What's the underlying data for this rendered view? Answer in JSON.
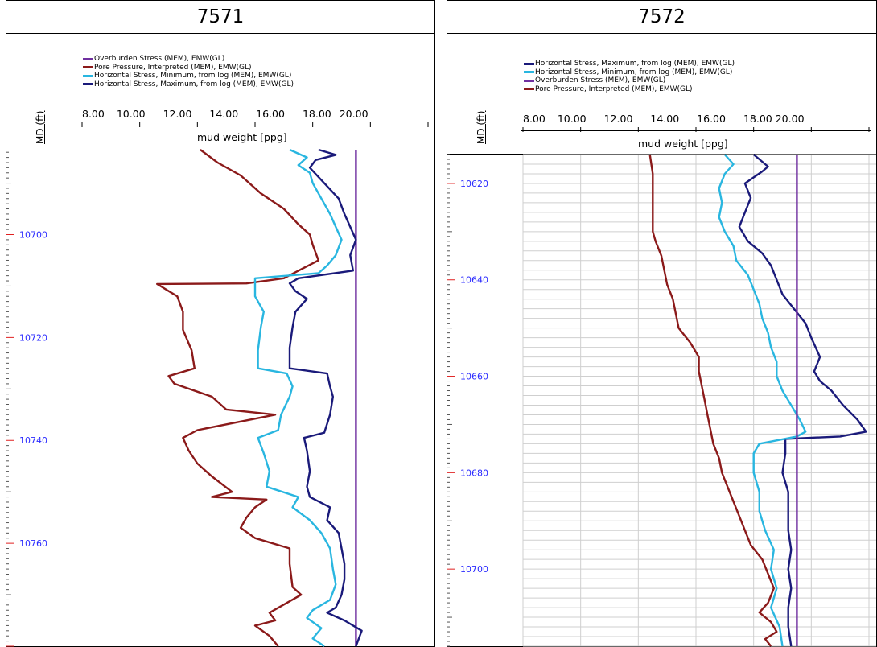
{
  "panels": [
    {
      "title": "7571",
      "depth_axis_label": "MD (ft)",
      "legend": [
        {
          "label": "Overburden Stress (MEM), EMW(GL)",
          "color": "#7030a0"
        },
        {
          "label": "Pore Pressure, Interpreted (MEM), EMW(GL)",
          "color": "#8b1a1a"
        },
        {
          "label": "Horizontal Stress, Minimum, from log (MEM), EMW(GL)",
          "color": "#29b6e0"
        },
        {
          "label": "Horizontal Stress, Maximum, from log (MEM), EMW(GL)",
          "color": "#1a1a7a"
        }
      ],
      "scale_ticks": [
        "8.00",
        "10.00",
        "12.00",
        "14.00",
        "16.00",
        "18.00",
        "20.00"
      ],
      "axis_label": "mud weight [ppg]"
    },
    {
      "title": "7572",
      "depth_axis_label": "MD (ft)",
      "legend": [
        {
          "label": "Horizontal Stress, Maximum, from log (MEM), EMW(GL)",
          "color": "#1a1a7a"
        },
        {
          "label": "Horizontal Stress, Minimum, from log (MEM), EMW(GL)",
          "color": "#29b6e0"
        },
        {
          "label": "Overburden Stress (MEM), EMW(GL)",
          "color": "#7030a0"
        },
        {
          "label": "Pore Pressure, Interpreted (MEM), EMW(GL)",
          "color": "#8b1a1a"
        }
      ],
      "scale_ticks": [
        "8.00",
        "10.00",
        "12.00",
        "14.00",
        "16.00",
        "18.00",
        "20.00"
      ],
      "axis_label": "mud weight [ppg]"
    }
  ],
  "chart_data": [
    {
      "type": "line",
      "title": "7571",
      "xlabel": "mud weight [ppg]",
      "ylabel": "MD (ft)",
      "xlim": [
        8,
        20
      ],
      "ylim": [
        10683.5,
        10780
      ],
      "y_tick_labels": [
        10700,
        10720,
        10740,
        10760
      ],
      "grid": false,
      "series": [
        {
          "name": "Overburden Stress (MEM), EMW(GL)",
          "color": "#7030a0",
          "points": [
            [
              17.5,
              10683.5
            ],
            [
              17.5,
              10780
            ]
          ]
        },
        {
          "name": "Pore Pressure, Interpreted (MEM), EMW(GL)",
          "color": "#8b1a1a",
          "points": [
            [
              12.1,
              10683.5
            ],
            [
              12.7,
              10686
            ],
            [
              13.5,
              10688.5
            ],
            [
              14.2,
              10692
            ],
            [
              15.0,
              10695
            ],
            [
              15.5,
              10698
            ],
            [
              15.9,
              10700
            ],
            [
              16.0,
              10702
            ],
            [
              16.2,
              10705
            ],
            [
              15.0,
              10708.5
            ],
            [
              13.7,
              10709.5
            ],
            [
              10.6,
              10709.6
            ],
            [
              11.3,
              10712
            ],
            [
              11.5,
              10715
            ],
            [
              11.5,
              10718.5
            ],
            [
              11.8,
              10722.5
            ],
            [
              11.9,
              10726
            ],
            [
              11.0,
              10727.5
            ],
            [
              11.2,
              10729
            ],
            [
              12.5,
              10731.5
            ],
            [
              13.0,
              10734
            ],
            [
              14.7,
              10735
            ],
            [
              12.0,
              10738
            ],
            [
              11.5,
              10739.5
            ],
            [
              11.7,
              10742
            ],
            [
              12.0,
              10744.5
            ],
            [
              12.5,
              10747
            ],
            [
              13.2,
              10750
            ],
            [
              12.5,
              10751
            ],
            [
              14.4,
              10751.5
            ],
            [
              14.0,
              10753
            ],
            [
              13.7,
              10755
            ],
            [
              13.5,
              10757
            ],
            [
              14.0,
              10759
            ],
            [
              15.2,
              10761
            ],
            [
              15.2,
              10764
            ],
            [
              15.3,
              10768.5
            ],
            [
              15.6,
              10770
            ],
            [
              14.5,
              10773.5
            ],
            [
              14.7,
              10775
            ],
            [
              14.0,
              10776
            ],
            [
              14.5,
              10778
            ],
            [
              14.8,
              10780
            ]
          ]
        },
        {
          "name": "Horizontal Stress, Minimum, from log (MEM), EMW(GL)",
          "color": "#29b6e0",
          "points": [
            [
              15.2,
              10683.5
            ],
            [
              15.8,
              10685
            ],
            [
              15.5,
              10686.5
            ],
            [
              15.9,
              10688
            ],
            [
              16.0,
              10690
            ],
            [
              16.3,
              10693
            ],
            [
              16.6,
              10696
            ],
            [
              16.8,
              10698.5
            ],
            [
              17.0,
              10701
            ],
            [
              16.8,
              10704
            ],
            [
              16.5,
              10706
            ],
            [
              16.2,
              10707.5
            ],
            [
              14.0,
              10708.5
            ],
            [
              14.0,
              10712
            ],
            [
              14.3,
              10715
            ],
            [
              14.2,
              10718
            ],
            [
              14.1,
              10722.5
            ],
            [
              14.1,
              10726
            ],
            [
              15.1,
              10727
            ],
            [
              15.3,
              10729.5
            ],
            [
              15.2,
              10731.5
            ],
            [
              14.9,
              10735
            ],
            [
              14.8,
              10738
            ],
            [
              14.1,
              10739.5
            ],
            [
              14.3,
              10742.5
            ],
            [
              14.5,
              10746
            ],
            [
              14.4,
              10749
            ],
            [
              15.5,
              10751
            ],
            [
              15.3,
              10753
            ],
            [
              15.9,
              10755.5
            ],
            [
              16.3,
              10758
            ],
            [
              16.6,
              10761
            ],
            [
              16.7,
              10765
            ],
            [
              16.8,
              10768
            ],
            [
              16.6,
              10771
            ],
            [
              16.0,
              10773
            ],
            [
              15.8,
              10774.5
            ],
            [
              16.3,
              10776.5
            ],
            [
              16.0,
              10778.5
            ],
            [
              16.4,
              10780
            ]
          ]
        },
        {
          "name": "Horizontal Stress, Maximum, from log (MEM), EMW(GL)",
          "color": "#1a1a7a",
          "points": [
            [
              16.2,
              10683.5
            ],
            [
              16.8,
              10684.5
            ],
            [
              16.1,
              10685.5
            ],
            [
              15.9,
              10687
            ],
            [
              16.4,
              10690
            ],
            [
              16.9,
              10693
            ],
            [
              17.1,
              10696
            ],
            [
              17.3,
              10698.5
            ],
            [
              17.5,
              10701
            ],
            [
              17.3,
              10704
            ],
            [
              17.4,
              10707
            ],
            [
              15.5,
              10708.5
            ],
            [
              15.2,
              10709.5
            ],
            [
              15.4,
              10711
            ],
            [
              15.8,
              10712.5
            ],
            [
              15.4,
              10715
            ],
            [
              15.3,
              10718
            ],
            [
              15.2,
              10722
            ],
            [
              15.2,
              10726
            ],
            [
              16.5,
              10727
            ],
            [
              16.6,
              10729.5
            ],
            [
              16.7,
              10731.5
            ],
            [
              16.6,
              10735
            ],
            [
              16.4,
              10738.5
            ],
            [
              15.7,
              10739.5
            ],
            [
              15.8,
              10742
            ],
            [
              15.9,
              10746
            ],
            [
              15.8,
              10749
            ],
            [
              15.9,
              10751
            ],
            [
              16.6,
              10753
            ],
            [
              16.5,
              10755.5
            ],
            [
              16.9,
              10758
            ],
            [
              17.0,
              10761
            ],
            [
              17.1,
              10764
            ],
            [
              17.1,
              10767
            ],
            [
              17.0,
              10770
            ],
            [
              16.8,
              10772.5
            ],
            [
              16.5,
              10773.5
            ],
            [
              17.1,
              10775
            ],
            [
              17.7,
              10777
            ],
            [
              17.5,
              10780
            ]
          ]
        }
      ]
    },
    {
      "type": "line",
      "title": "7572",
      "xlabel": "mud weight [ppg]",
      "ylabel": "MD (ft)",
      "xlim": [
        8,
        20
      ],
      "ylim": [
        10614,
        10716
      ],
      "y_tick_labels": [
        10620,
        10640,
        10660,
        10680,
        10700
      ],
      "grid": true,
      "series": [
        {
          "name": "Horizontal Stress, Maximum, from log (MEM), EMW(GL)",
          "color": "#1a1a7a",
          "points": [
            [
              16.0,
              10614
            ],
            [
              16.5,
              10616.5
            ],
            [
              16.3,
              10617.5
            ],
            [
              15.7,
              10620
            ],
            [
              15.9,
              10623
            ],
            [
              15.7,
              10626
            ],
            [
              15.5,
              10629
            ],
            [
              15.8,
              10632
            ],
            [
              16.3,
              10634.5
            ],
            [
              16.6,
              10637
            ],
            [
              16.8,
              10640
            ],
            [
              17.0,
              10643
            ],
            [
              17.4,
              10646
            ],
            [
              17.8,
              10649
            ],
            [
              18.0,
              10652
            ],
            [
              18.3,
              10656
            ],
            [
              18.1,
              10659
            ],
            [
              18.3,
              10661
            ],
            [
              18.7,
              10663
            ],
            [
              19.1,
              10666
            ],
            [
              19.6,
              10669
            ],
            [
              19.9,
              10671.5
            ],
            [
              19.0,
              10672.5
            ],
            [
              17.1,
              10673
            ],
            [
              17.1,
              10676
            ],
            [
              17.0,
              10680
            ],
            [
              17.2,
              10684
            ],
            [
              17.2,
              10688
            ],
            [
              17.2,
              10692
            ],
            [
              17.3,
              10696
            ],
            [
              17.2,
              10700
            ],
            [
              17.3,
              10704
            ],
            [
              17.2,
              10708
            ],
            [
              17.2,
              10712
            ],
            [
              17.3,
              10716
            ]
          ]
        },
        {
          "name": "Horizontal Stress, Minimum, from log (MEM), EMW(GL)",
          "color": "#29b6e0",
          "points": [
            [
              15.0,
              10614
            ],
            [
              15.3,
              10616
            ],
            [
              15.0,
              10618
            ],
            [
              14.8,
              10621
            ],
            [
              14.9,
              10624
            ],
            [
              14.8,
              10627
            ],
            [
              15.0,
              10630
            ],
            [
              15.3,
              10633
            ],
            [
              15.4,
              10636
            ],
            [
              15.8,
              10639
            ],
            [
              16.0,
              10642
            ],
            [
              16.2,
              10645
            ],
            [
              16.3,
              10648
            ],
            [
              16.5,
              10651
            ],
            [
              16.6,
              10654
            ],
            [
              16.8,
              10657
            ],
            [
              16.8,
              10660
            ],
            [
              17.0,
              10663
            ],
            [
              17.3,
              10666
            ],
            [
              17.6,
              10669
            ],
            [
              17.8,
              10671.5
            ],
            [
              17.5,
              10672.5
            ],
            [
              16.2,
              10674
            ],
            [
              16.0,
              10676
            ],
            [
              16.0,
              10680
            ],
            [
              16.2,
              10684
            ],
            [
              16.2,
              10688
            ],
            [
              16.4,
              10692
            ],
            [
              16.7,
              10696
            ],
            [
              16.6,
              10700
            ],
            [
              16.8,
              10704
            ],
            [
              16.6,
              10708
            ],
            [
              16.9,
              10712
            ],
            [
              17.0,
              10716
            ]
          ]
        },
        {
          "name": "Overburden Stress (MEM), EMW(GL)",
          "color": "#7030a0",
          "points": [
            [
              17.5,
              10614
            ],
            [
              17.5,
              10716
            ]
          ]
        },
        {
          "name": "Pore Pressure, Interpreted (MEM), EMW(GL)",
          "color": "#8b1a1a",
          "points": [
            [
              12.4,
              10614
            ],
            [
              12.5,
              10618
            ],
            [
              12.5,
              10622
            ],
            [
              12.5,
              10626
            ],
            [
              12.5,
              10630
            ],
            [
              12.6,
              10632
            ],
            [
              12.8,
              10635
            ],
            [
              12.9,
              10638
            ],
            [
              13.0,
              10641
            ],
            [
              13.2,
              10644
            ],
            [
              13.3,
              10647
            ],
            [
              13.4,
              10650
            ],
            [
              13.8,
              10653
            ],
            [
              14.1,
              10656
            ],
            [
              14.1,
              10659
            ],
            [
              14.2,
              10662
            ],
            [
              14.3,
              10665
            ],
            [
              14.4,
              10668
            ],
            [
              14.5,
              10671
            ],
            [
              14.6,
              10674
            ],
            [
              14.8,
              10677
            ],
            [
              14.9,
              10680
            ],
            [
              15.1,
              10683
            ],
            [
              15.3,
              10686
            ],
            [
              15.5,
              10689
            ],
            [
              15.7,
              10692
            ],
            [
              15.9,
              10695
            ],
            [
              16.3,
              10698
            ],
            [
              16.5,
              10701
            ],
            [
              16.7,
              10704
            ],
            [
              16.5,
              10707
            ],
            [
              16.2,
              10709
            ],
            [
              16.6,
              10711
            ],
            [
              16.8,
              10713
            ],
            [
              16.4,
              10714.5
            ],
            [
              16.6,
              10716
            ]
          ]
        }
      ]
    }
  ]
}
